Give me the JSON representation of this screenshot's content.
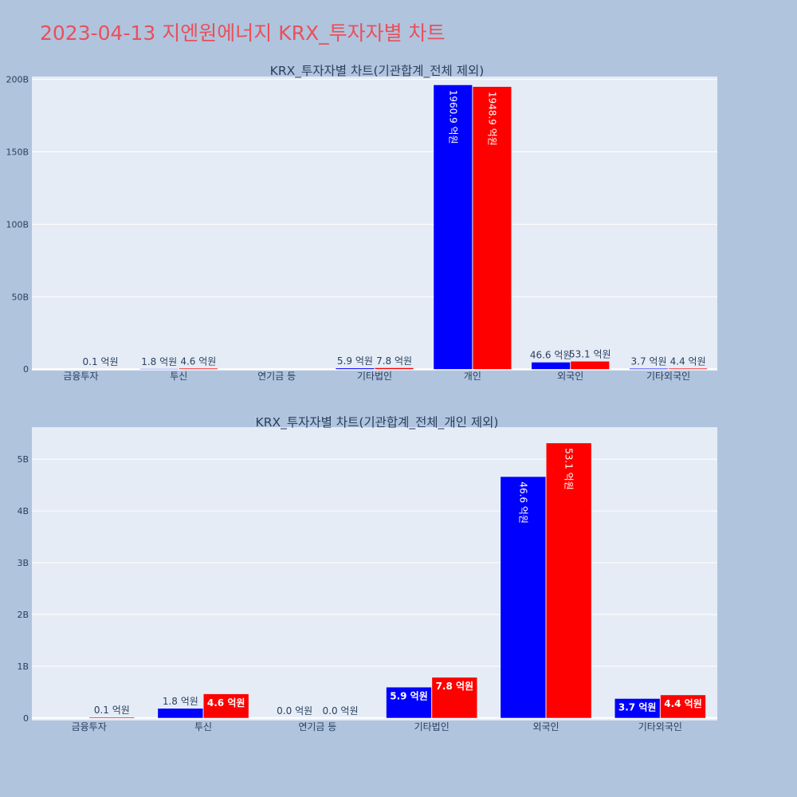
{
  "page": {
    "title": "2023-04-13 지엔원에너지 KRX_투자자별 차트"
  },
  "colors": {
    "buy": "#0000ff",
    "sell": "#ff0000",
    "plot_bg": "#e5ecf6",
    "grid": "#ffffff",
    "text": "#2a3f5f",
    "title": "#e8505b"
  },
  "chart_data": [
    {
      "type": "bar",
      "title": "KRX_투자자별 차트(기관합계_전체 제외)",
      "categories": [
        "금융투자",
        "투신",
        "연기금 등",
        "기타법인",
        "개인",
        "외국인",
        "기타외국인"
      ],
      "series": [
        {
          "values": [
            0,
            180000000,
            0,
            590000000,
            196090000000,
            4660000000,
            370000000
          ],
          "labels": [
            "",
            "1.8 억원",
            "",
            "5.9 억원",
            "1960.9 억원",
            "46.6 억원",
            "3.7 억원"
          ]
        },
        {
          "values": [
            10000000,
            460000000,
            0,
            780000000,
            194890000000,
            5310000000,
            440000000
          ],
          "labels": [
            "0.1 억원",
            "4.6 억원",
            "",
            "7.8 억원",
            "1948.9 억원",
            "53.1 억원",
            "4.4 억원"
          ]
        }
      ],
      "yticks": [
        0,
        50000000000,
        100000000000,
        150000000000,
        200000000000
      ],
      "ytick_labels": [
        "0",
        "50B",
        "100B",
        "150B",
        "200B"
      ],
      "ylim": [
        -1000000000,
        202000000000
      ],
      "grid": true,
      "legend": "none"
    },
    {
      "type": "bar",
      "title": "KRX_투자자별 차트(기관합계_전체_개인 제외)",
      "categories": [
        "금융투자",
        "투신",
        "연기금 등",
        "기타법인",
        "외국인",
        "기타외국인"
      ],
      "series": [
        {
          "values": [
            0,
            180000000,
            0,
            590000000,
            4660000000,
            370000000
          ],
          "labels": [
            "",
            "1.8 억원",
            "0.0 억원",
            "5.9 억원",
            "46.6 억원",
            "3.7 억원"
          ]
        },
        {
          "values": [
            10000000,
            460000000,
            0,
            780000000,
            5310000000,
            440000000
          ],
          "labels": [
            "0.1 억원",
            "4.6 억원",
            "0.0 억원",
            "7.8 억원",
            "53.1 억원",
            "4.4 억원"
          ]
        }
      ],
      "yticks": [
        0,
        1000000000,
        2000000000,
        3000000000,
        4000000000,
        5000000000
      ],
      "ytick_labels": [
        "0",
        "1B",
        "2B",
        "3B",
        "4B",
        "5B"
      ],
      "ylim": [
        -50000000,
        5620000000
      ],
      "grid": true,
      "legend": "none"
    }
  ]
}
